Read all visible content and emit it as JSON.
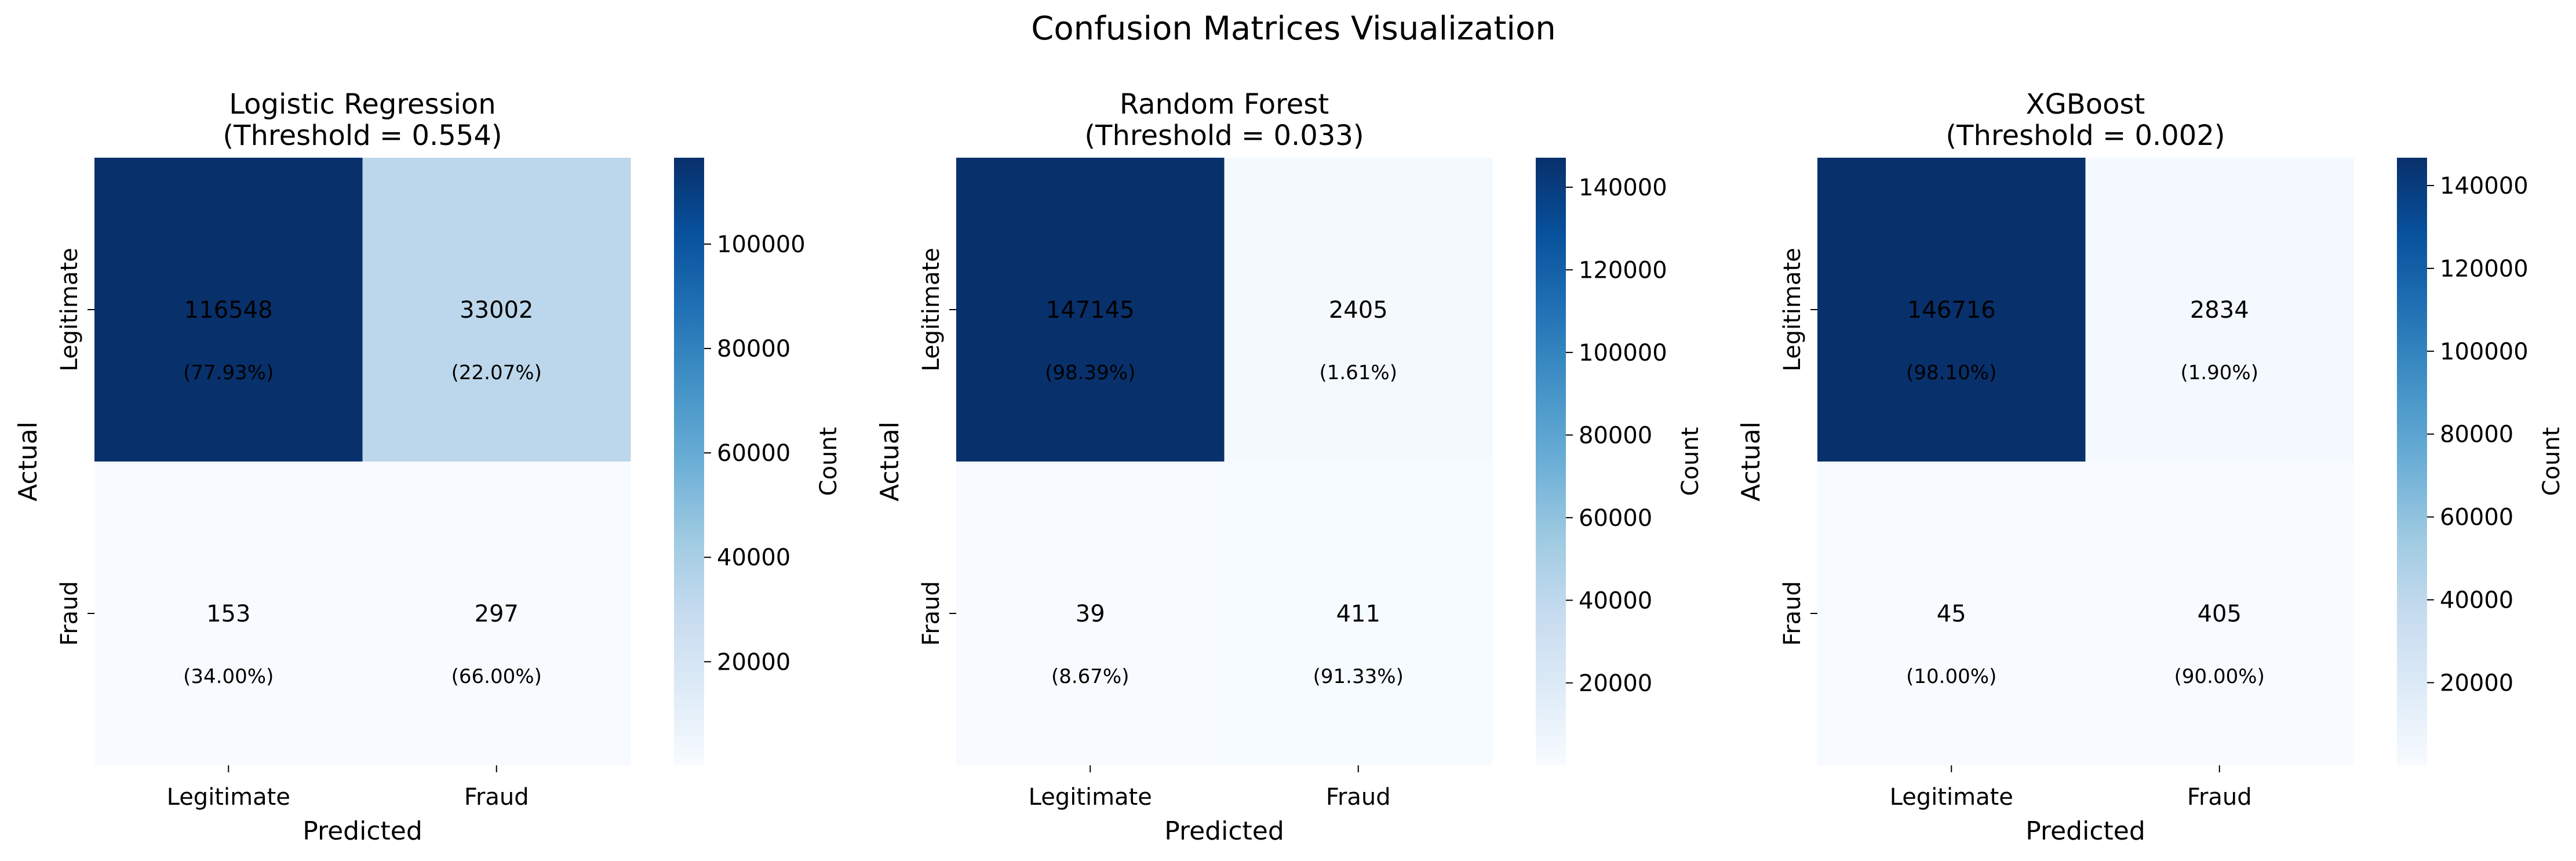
{
  "title": "Confusion Matrices Visualization",
  "colorbar_label": "Count",
  "annotation_color": "#ff0000",
  "colormap": "Blues",
  "chart_data": [
    {
      "type": "heatmap",
      "title_line1": "Logistic Regression",
      "title_line2": "(Threshold = 0.554)",
      "xlabel": "Predicted",
      "ylabel": "Actual",
      "x_categories": [
        "Legitimate",
        "Fraud"
      ],
      "y_categories": [
        "Legitimate",
        "Fraud"
      ],
      "values": [
        [
          116548,
          33002
        ],
        [
          153,
          297
        ]
      ],
      "percents": [
        [
          "(77.93%)",
          "(22.07%)"
        ],
        [
          "(34.00%)",
          "(66.00%)"
        ]
      ],
      "value_labels": [
        [
          "116548",
          "33002"
        ],
        [
          "153",
          "297"
        ]
      ],
      "vmin": 153,
      "vmax": 116548,
      "colorbar_ticks": [
        20000,
        40000,
        60000,
        80000,
        100000
      ],
      "colorbar_tick_labels": [
        "20000",
        "40000",
        "60000",
        "80000",
        "100000"
      ]
    },
    {
      "type": "heatmap",
      "title_line1": "Random Forest",
      "title_line2": "(Threshold = 0.033)",
      "xlabel": "Predicted",
      "ylabel": "Actual",
      "x_categories": [
        "Legitimate",
        "Fraud"
      ],
      "y_categories": [
        "Legitimate",
        "Fraud"
      ],
      "values": [
        [
          147145,
          2405
        ],
        [
          39,
          411
        ]
      ],
      "percents": [
        [
          "(98.39%)",
          "(1.61%)"
        ],
        [
          "(8.67%)",
          "(91.33%)"
        ]
      ],
      "value_labels": [
        [
          "147145",
          "2405"
        ],
        [
          "39",
          "411"
        ]
      ],
      "vmin": 39,
      "vmax": 147145,
      "colorbar_ticks": [
        20000,
        40000,
        60000,
        80000,
        100000,
        120000,
        140000
      ],
      "colorbar_tick_labels": [
        "20000",
        "40000",
        "60000",
        "80000",
        "100000",
        "120000",
        "140000"
      ]
    },
    {
      "type": "heatmap",
      "title_line1": "XGBoost",
      "title_line2": "(Threshold = 0.002)",
      "xlabel": "Predicted",
      "ylabel": "Actual",
      "x_categories": [
        "Legitimate",
        "Fraud"
      ],
      "y_categories": [
        "Legitimate",
        "Fraud"
      ],
      "values": [
        [
          146716,
          2834
        ],
        [
          45,
          405
        ]
      ],
      "percents": [
        [
          "(98.10%)",
          "(1.90%)"
        ],
        [
          "(10.00%)",
          "(90.00%)"
        ]
      ],
      "value_labels": [
        [
          "146716",
          "2834"
        ],
        [
          "45",
          "405"
        ]
      ],
      "vmin": 45,
      "vmax": 146716,
      "colorbar_ticks": [
        20000,
        40000,
        60000,
        80000,
        100000,
        120000,
        140000
      ],
      "colorbar_tick_labels": [
        "20000",
        "40000",
        "60000",
        "80000",
        "100000",
        "120000",
        "140000"
      ]
    }
  ]
}
